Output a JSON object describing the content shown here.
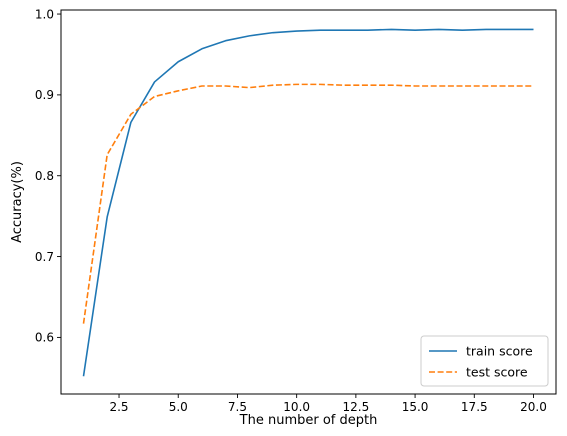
{
  "chart_data": {
    "type": "line",
    "xlabel": "The number of depth",
    "ylabel": "Accuracy(%)",
    "xlim": [
      0.05,
      20.95
    ],
    "ylim": [
      0.53,
      1.005
    ],
    "xticks": [
      2.5,
      5.0,
      7.5,
      10.0,
      12.5,
      15.0,
      17.5,
      20.0
    ],
    "xtick_labels": [
      "2.5",
      "5.0",
      "7.5",
      "10.0",
      "12.5",
      "15.0",
      "17.5",
      "20.0"
    ],
    "yticks": [
      0.6,
      0.7,
      0.8,
      0.9,
      1.0
    ],
    "ytick_labels": [
      "0.6",
      "0.7",
      "0.8",
      "0.9",
      "1.0"
    ],
    "grid": false,
    "legend_position": "lower-right",
    "x": [
      1,
      2,
      3,
      4,
      5,
      6,
      7,
      8,
      9,
      10,
      11,
      12,
      13,
      14,
      15,
      16,
      17,
      18,
      19,
      20
    ],
    "series": [
      {
        "name": "train score",
        "color": "#1f77b4",
        "style": "solid",
        "values": [
          0.552,
          0.749,
          0.866,
          0.916,
          0.941,
          0.957,
          0.967,
          0.973,
          0.977,
          0.979,
          0.98,
          0.98,
          0.98,
          0.981,
          0.98,
          0.981,
          0.98,
          0.981,
          0.981,
          0.981
        ]
      },
      {
        "name": "test score",
        "color": "#ff7f0e",
        "style": "dashed",
        "values": [
          0.617,
          0.826,
          0.876,
          0.898,
          0.905,
          0.911,
          0.911,
          0.909,
          0.912,
          0.913,
          0.913,
          0.912,
          0.912,
          0.912,
          0.911,
          0.911,
          0.911,
          0.911,
          0.911,
          0.911
        ]
      }
    ]
  }
}
